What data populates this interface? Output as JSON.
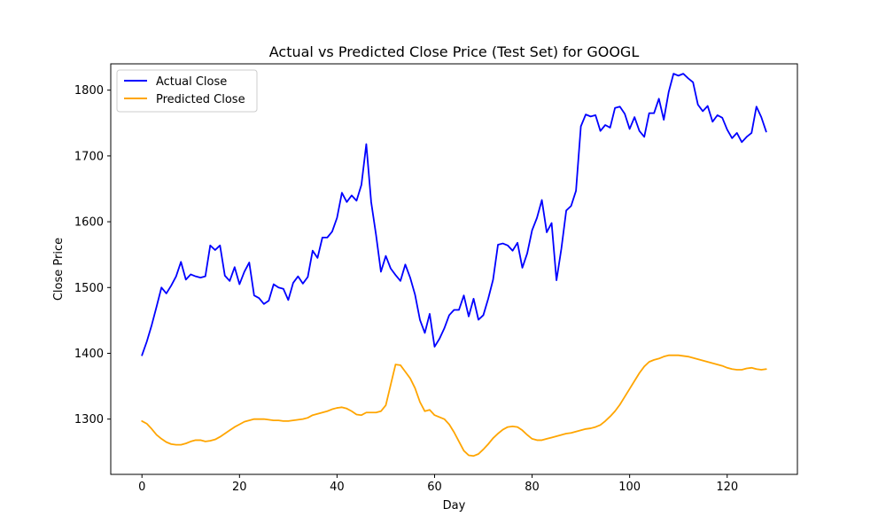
{
  "chart_data": {
    "type": "line",
    "title": "Actual vs Predicted Close Price (Test Set) for GOOGL",
    "xlabel": "Day",
    "ylabel": "Close Price",
    "xlim": [
      -6.4,
      134.4
    ],
    "ylim": [
      1216,
      1840
    ],
    "xticks": [
      0,
      20,
      40,
      60,
      80,
      100,
      120
    ],
    "yticks": [
      1300,
      1400,
      1500,
      1600,
      1700,
      1800
    ],
    "legend": "top-left",
    "grid": false,
    "series": [
      {
        "name": "Actual Close",
        "color": "#0000ff",
        "x": [
          0,
          1,
          2,
          3,
          4,
          5,
          6,
          7,
          8,
          9,
          10,
          11,
          12,
          13,
          14,
          15,
          16,
          17,
          18,
          19,
          20,
          21,
          22,
          23,
          24,
          25,
          26,
          27,
          28,
          29,
          30,
          31,
          32,
          33,
          34,
          35,
          36,
          37,
          38,
          39,
          40,
          41,
          42,
          43,
          44,
          45,
          46,
          47,
          48,
          49,
          50,
          51,
          52,
          53,
          54,
          55,
          56,
          57,
          58,
          59,
          60,
          61,
          62,
          63,
          64,
          65,
          66,
          67,
          68,
          69,
          70,
          71,
          72,
          73,
          74,
          75,
          76,
          77,
          78,
          79,
          80,
          81,
          82,
          83,
          84,
          85,
          86,
          87,
          88,
          89,
          90,
          91,
          92,
          93,
          94,
          95,
          96,
          97,
          98,
          99,
          100,
          101,
          102,
          103,
          104,
          105,
          106,
          107,
          108,
          109,
          110,
          111,
          112,
          113,
          114,
          115,
          116,
          117,
          118,
          119,
          120,
          121,
          122,
          123,
          124,
          125,
          126,
          127,
          128
        ],
        "values": [
          1397,
          1418,
          1443,
          1471,
          1500,
          1491,
          1503,
          1517,
          1539,
          1512,
          1520,
          1517,
          1515,
          1517,
          1564,
          1557,
          1564,
          1518,
          1510,
          1531,
          1505,
          1524,
          1538,
          1488,
          1484,
          1475,
          1480,
          1505,
          1500,
          1498,
          1481,
          1507,
          1517,
          1506,
          1516,
          1556,
          1545,
          1576,
          1576,
          1585,
          1606,
          1644,
          1630,
          1640,
          1632,
          1656,
          1718,
          1630,
          1580,
          1524,
          1548,
          1529,
          1519,
          1510,
          1535,
          1515,
          1489,
          1451,
          1431,
          1460,
          1410,
          1422,
          1438,
          1458,
          1466,
          1466,
          1488,
          1456,
          1483,
          1451,
          1458,
          1483,
          1512,
          1565,
          1567,
          1564,
          1556,
          1568,
          1530,
          1552,
          1587,
          1606,
          1633,
          1584,
          1598,
          1511,
          1559,
          1617,
          1624,
          1647,
          1745,
          1763,
          1760,
          1762,
          1738,
          1747,
          1743,
          1773,
          1775,
          1764,
          1741,
          1759,
          1738,
          1729,
          1765,
          1765,
          1787,
          1755,
          1797,
          1825,
          1822,
          1825,
          1818,
          1812,
          1778,
          1768,
          1776,
          1752,
          1762,
          1758,
          1740,
          1727,
          1735,
          1721,
          1729,
          1735,
          1775,
          1759,
          1737
        ]
      },
      {
        "name": "Predicted Close",
        "color": "#ffa500",
        "x": [
          0,
          1,
          2,
          3,
          4,
          5,
          6,
          7,
          8,
          9,
          10,
          11,
          12,
          13,
          14,
          15,
          16,
          17,
          18,
          19,
          20,
          21,
          22,
          23,
          24,
          25,
          26,
          27,
          28,
          29,
          30,
          31,
          32,
          33,
          34,
          35,
          36,
          37,
          38,
          39,
          40,
          41,
          42,
          43,
          44,
          45,
          46,
          47,
          48,
          49,
          50,
          51,
          52,
          53,
          54,
          55,
          56,
          57,
          58,
          59,
          60,
          61,
          62,
          63,
          64,
          65,
          66,
          67,
          68,
          69,
          70,
          71,
          72,
          73,
          74,
          75,
          76,
          77,
          78,
          79,
          80,
          81,
          82,
          83,
          84,
          85,
          86,
          87,
          88,
          89,
          90,
          91,
          92,
          93,
          94,
          95,
          96,
          97,
          98,
          99,
          100,
          101,
          102,
          103,
          104,
          105,
          106,
          107,
          108,
          109,
          110,
          111,
          112,
          113,
          114,
          115,
          116,
          117,
          118,
          119,
          120,
          121,
          122,
          123,
          124,
          125,
          126,
          127,
          128
        ],
        "values": [
          1297,
          1293,
          1285,
          1276,
          1270,
          1265,
          1262,
          1261,
          1261,
          1263,
          1266,
          1268,
          1268,
          1266,
          1267,
          1269,
          1273,
          1278,
          1283,
          1288,
          1292,
          1296,
          1298,
          1300,
          1300,
          1300,
          1299,
          1298,
          1298,
          1297,
          1297,
          1298,
          1299,
          1300,
          1302,
          1306,
          1308,
          1310,
          1312,
          1315,
          1317,
          1318,
          1316,
          1312,
          1307,
          1306,
          1310,
          1310,
          1310,
          1312,
          1321,
          1352,
          1383,
          1382,
          1372,
          1362,
          1347,
          1326,
          1312,
          1314,
          1306,
          1303,
          1300,
          1292,
          1280,
          1266,
          1252,
          1245,
          1244,
          1247,
          1254,
          1262,
          1271,
          1278,
          1284,
          1288,
          1289,
          1288,
          1283,
          1276,
          1270,
          1268,
          1268,
          1270,
          1272,
          1274,
          1276,
          1278,
          1279,
          1281,
          1283,
          1285,
          1286,
          1288,
          1291,
          1297,
          1304,
          1312,
          1322,
          1334,
          1346,
          1358,
          1370,
          1380,
          1387,
          1390,
          1392,
          1395,
          1397,
          1397,
          1397,
          1396,
          1395,
          1393,
          1391,
          1389,
          1387,
          1385,
          1383,
          1381,
          1378,
          1376,
          1375,
          1375,
          1377,
          1378,
          1376,
          1375,
          1376
        ]
      }
    ]
  }
}
